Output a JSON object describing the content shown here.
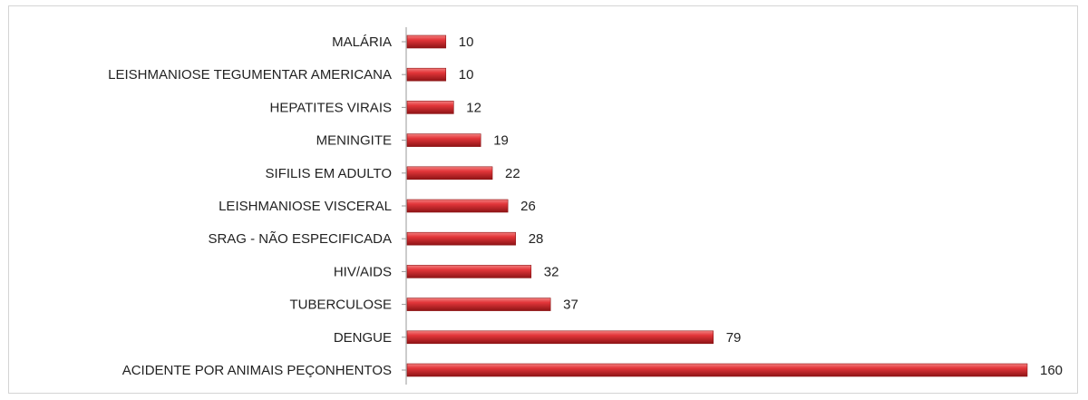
{
  "chart_data": {
    "type": "bar",
    "orientation": "horizontal",
    "categories": [
      "MALÁRIA",
      "LEISHMANIOSE TEGUMENTAR AMERICANA",
      "HEPATITES VIRAIS",
      "MENINGITE",
      "SIFILIS EM ADULTO",
      "LEISHMANIOSE VISCERAL",
      "SRAG - NÃO ESPECIFICADA",
      "HIV/AIDS",
      "TUBERCULOSE",
      "DENGUE",
      "ACIDENTE POR ANIMAIS PEÇONHENTOS"
    ],
    "values": [
      10,
      10,
      12,
      19,
      22,
      26,
      28,
      32,
      37,
      79,
      160
    ],
    "title": "",
    "xlabel": "",
    "ylabel": "",
    "xlim": [
      0,
      160
    ],
    "grid": false,
    "legend": "none",
    "bar_color": "#e3363a",
    "bar_color_dark": "#8e1416",
    "bar_color_light": "#f2807f"
  }
}
